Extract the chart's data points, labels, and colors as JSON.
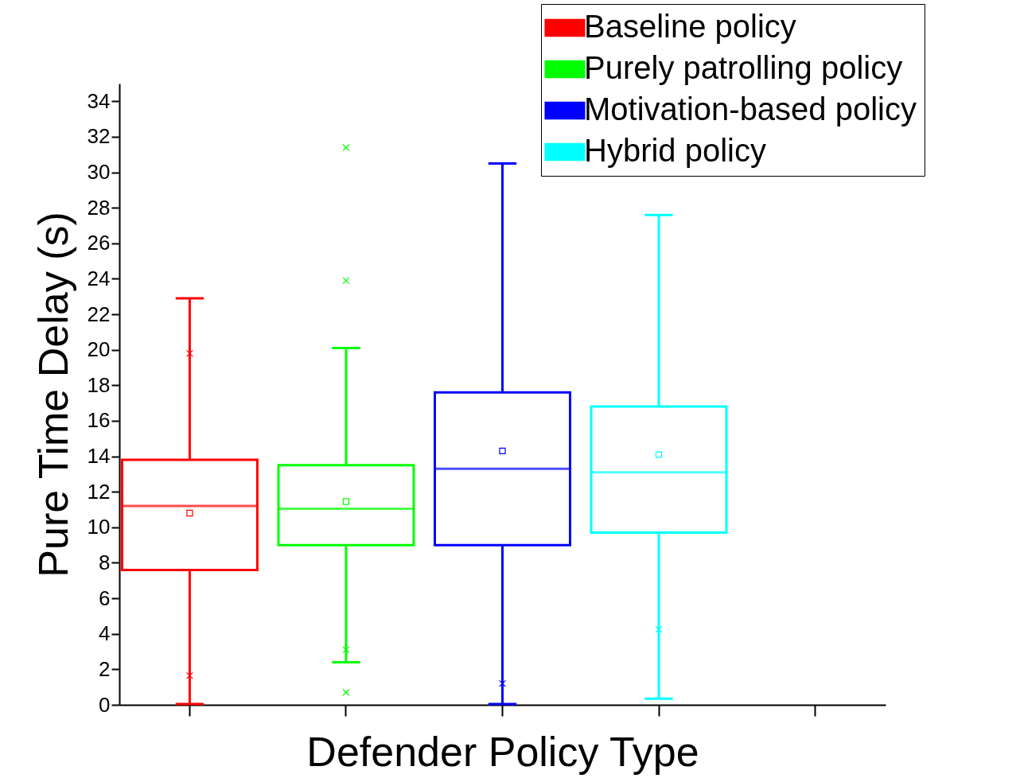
{
  "chart_data": {
    "type": "box",
    "xlabel": "Defender Policy Type",
    "ylabel": "Pure Time Delay (s)",
    "categories": [
      null,
      null,
      null,
      null,
      null
    ],
    "ylim": [
      0,
      35
    ],
    "yticks": [
      0,
      2,
      4,
      6,
      8,
      10,
      12,
      14,
      16,
      18,
      20,
      22,
      24,
      26,
      28,
      30,
      32,
      34
    ],
    "grid": false,
    "legend": "top right",
    "tick_labels": "y",
    "series": [
      {
        "name": "Baseline policy",
        "color": "#ff0000",
        "boxes": [
          {
            "low": 0.05,
            "q1": 7.6,
            "median": 11.2,
            "q3": 13.8,
            "high": 22.9,
            "mean": 10.8,
            "outliers": [
              19.8,
              1.65
            ]
          },
          null,
          null,
          null,
          null
        ]
      },
      {
        "name": "Purely patrolling policy",
        "color": "#00ff00",
        "boxes": [
          null,
          {
            "low": 2.4,
            "q1": 9.0,
            "median": 11.05,
            "q3": 13.5,
            "high": 20.1,
            "mean": 11.45,
            "outliers": [
              31.4,
              23.9,
              3.1,
              0.7
            ]
          },
          null,
          null,
          null
        ]
      },
      {
        "name": "Motivation-based policy",
        "color": "#0000ff",
        "boxes": [
          null,
          null,
          {
            "low": 0.05,
            "q1": 9.0,
            "median": 13.3,
            "q3": 17.6,
            "high": 30.5,
            "mean": 14.3,
            "outliers": [
              1.2
            ]
          },
          null,
          null
        ]
      },
      {
        "name": "Hybrid policy",
        "color": "#00ffff",
        "boxes": [
          null,
          null,
          null,
          {
            "low": 0.35,
            "q1": 9.7,
            "median": 13.1,
            "q3": 16.8,
            "high": 27.6,
            "mean": 14.1,
            "outliers": [
              4.25
            ]
          },
          null
        ]
      }
    ]
  }
}
